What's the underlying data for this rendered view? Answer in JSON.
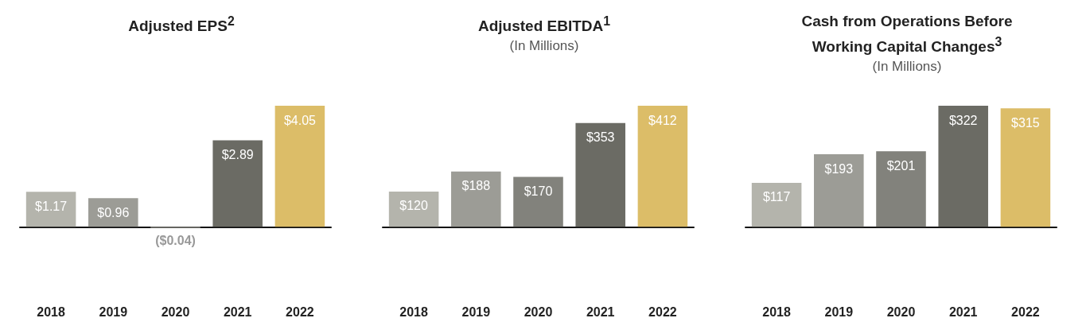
{
  "chart_data": [
    {
      "type": "bar",
      "title": "Adjusted EPS$^{2}$",
      "categories": [
        "2018",
        "2019",
        "2020",
        "2021",
        "2022"
      ],
      "values": [
        1.17,
        0.96,
        -0.04,
        2.89,
        4.05
      ],
      "colors": [
        "#b4b4ac",
        "#9c9c96",
        "#82827c",
        "#6b6b64",
        "#dcbd68"
      ],
      "value_labels": [
        "$1.17",
        "$0.96",
        "($0.04)",
        "$2.89",
        "$4.05"
      ]
    },
    {
      "type": "bar",
      "title": "Adjusted EBITDA$^{1}$",
      "subtitle": "(In Millions)",
      "categories": [
        "2018",
        "2019",
        "2020",
        "2021",
        "2022"
      ],
      "values": [
        120,
        188,
        170,
        353,
        412
      ],
      "colors": [
        "#b4b4ac",
        "#9c9c96",
        "#82827c",
        "#6b6b64",
        "#dcbd68"
      ],
      "value_labels": [
        "$120",
        "$188",
        "$170",
        "$353",
        "$412"
      ]
    },
    {
      "type": "bar",
      "title": "Cash from Operations Before Working Capital Changes$^{3}$",
      "subtitle": "(In Millions)",
      "categories": [
        "2018",
        "2019",
        "2020",
        "2021",
        "2022"
      ],
      "values": [
        117,
        193,
        201,
        322,
        315
      ],
      "colors": [
        "#b4b4ac",
        "#9c9c96",
        "#82827c",
        "#6b6b64",
        "#dcbd68"
      ],
      "value_labels": [
        "$117",
        "$193",
        "$201",
        "$322",
        "$315"
      ]
    }
  ]
}
